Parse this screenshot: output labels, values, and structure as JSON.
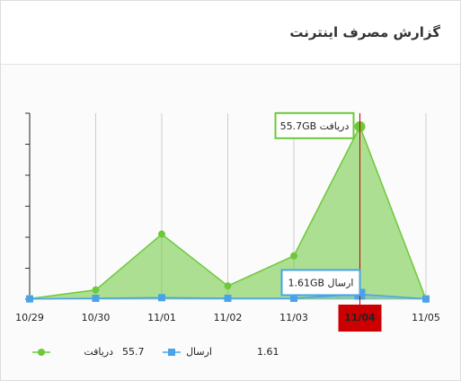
{
  "title": "گزارش مصرف اینترنت",
  "chart_data": {
    "type": "area",
    "categories": [
      "10/29",
      "10/30",
      "11/01",
      "11/02",
      "11/03",
      "11/04",
      "11/05"
    ],
    "series": [
      {
        "name": "دریافت",
        "color": "#6cc93a",
        "values": [
          0.2,
          3,
          21,
          4.3,
          14,
          55.7,
          0
        ],
        "value_labels": [
          null,
          null,
          null,
          null,
          null,
          "دریافت 55.7GB",
          null
        ]
      },
      {
        "name": "ارسال",
        "color": "#4aa3e8",
        "values": [
          0.1,
          0.3,
          0.5,
          0.3,
          0.3,
          1.61,
          0.1
        ],
        "value_labels": [
          null,
          null,
          null,
          null,
          null,
          "ارسال 1.61GB",
          null
        ]
      }
    ],
    "ylim": [
      0,
      60
    ],
    "yticks": [
      0,
      10,
      20,
      30,
      40,
      50,
      60
    ],
    "grid": true
  }
}
